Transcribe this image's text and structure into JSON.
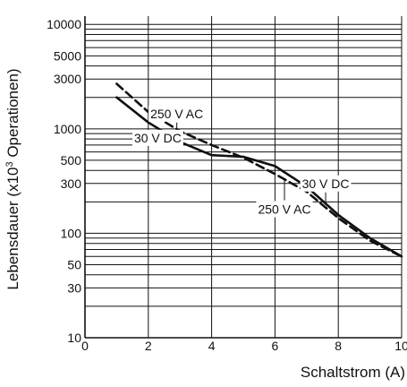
{
  "chart_data": {
    "type": "line",
    "title": "",
    "xlabel": "Schaltstrom (A)",
    "ylabel": "Lebensdauer (x10³ Operationen)",
    "ylabel_parts": {
      "before": "Lebensdauer (x10",
      "sup": "3",
      "after": " Operationen)"
    },
    "xscale": "linear",
    "yscale": "log",
    "xlim": [
      0,
      10
    ],
    "ylim": [
      10,
      12000
    ],
    "xticks": [
      0,
      2,
      4,
      6,
      8,
      10
    ],
    "xtick_labels": [
      "0",
      "2",
      "4",
      "6",
      "8",
      "10"
    ],
    "yticks": [
      10,
      30,
      50,
      100,
      300,
      500,
      1000,
      3000,
      5000,
      10000
    ],
    "ytick_labels": [
      "10",
      "30",
      "50",
      "100",
      "300",
      "500",
      "1000",
      "3000",
      "5000",
      "10000"
    ],
    "grid": true,
    "series": [
      {
        "name": "30 V DC",
        "style": "solid",
        "color": "#111111",
        "x": [
          1,
          2,
          3,
          4,
          5,
          6,
          7,
          8,
          9,
          10
        ],
        "y": [
          2000,
          1150,
          750,
          560,
          540,
          440,
          280,
          150,
          90,
          60
        ]
      },
      {
        "name": "250 V AC",
        "style": "dashed",
        "color": "#111111",
        "x": [
          1,
          2,
          3,
          4,
          5,
          6,
          7,
          8,
          9,
          10
        ],
        "y": [
          2700,
          1450,
          950,
          700,
          530,
          370,
          250,
          140,
          85,
          60
        ]
      }
    ],
    "annotations": [
      {
        "text": "250 V AC",
        "series": "250 V AC",
        "x": 2.9,
        "y": 1400
      },
      {
        "text": "30 V DC",
        "series": "30 V DC",
        "x": 2.3,
        "y": 820
      },
      {
        "text": "30 V DC",
        "series": "30 V DC",
        "x": 7.6,
        "y": 300
      },
      {
        "text": "250 V AC",
        "series": "250 V AC",
        "x": 6.3,
        "y": 170
      }
    ]
  }
}
